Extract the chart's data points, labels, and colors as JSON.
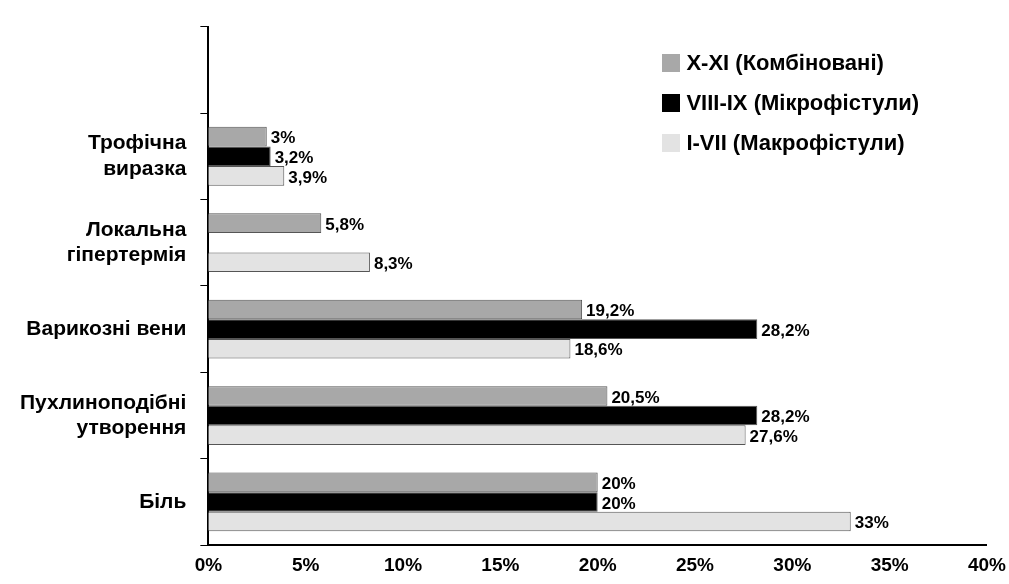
{
  "chart_data": {
    "type": "bar",
    "orientation": "horizontal",
    "categories": [
      null,
      "Трофічна виразка",
      "Локальна гіпертермія",
      "Варикозні вени",
      "Пухлиноподібні утворення",
      "Біль"
    ],
    "series": [
      {
        "name": "X-XI (Комбіновані)",
        "color": "#a8a8a8",
        "values": [
          null,
          3,
          5.8,
          19.2,
          20.5,
          20
        ],
        "value_labels": [
          null,
          "3%",
          "5,8%",
          "19,2%",
          "20,5%",
          "20%"
        ]
      },
      {
        "name": "VIII-IX (Мікрофістули)",
        "color": "#000000",
        "values": [
          null,
          3.2,
          null,
          28.2,
          28.2,
          20
        ],
        "value_labels": [
          null,
          "3,2%",
          null,
          "28,2%",
          "28,2%",
          "20%"
        ]
      },
      {
        "name": "I-VII (Макрофістули)",
        "color": "#e3e3e3",
        "values": [
          null,
          3.9,
          8.3,
          18.6,
          27.6,
          33
        ],
        "value_labels": [
          null,
          "3,9%",
          "8,3%",
          "18,6%",
          "27,6%",
          "33%"
        ]
      }
    ],
    "xlim": [
      0,
      40
    ],
    "xticks": [
      {
        "value": 0,
        "label": "0%"
      },
      {
        "value": 5,
        "label": "5%"
      },
      {
        "value": 10,
        "label": "10%"
      },
      {
        "value": 15,
        "label": "15%"
      },
      {
        "value": 20,
        "label": "20%"
      },
      {
        "value": 25,
        "label": "25%"
      },
      {
        "value": 30,
        "label": "30%"
      },
      {
        "value": 35,
        "label": "35%"
      },
      {
        "value": 40,
        "label": "40%"
      }
    ],
    "grid": false,
    "legend": "top right"
  }
}
